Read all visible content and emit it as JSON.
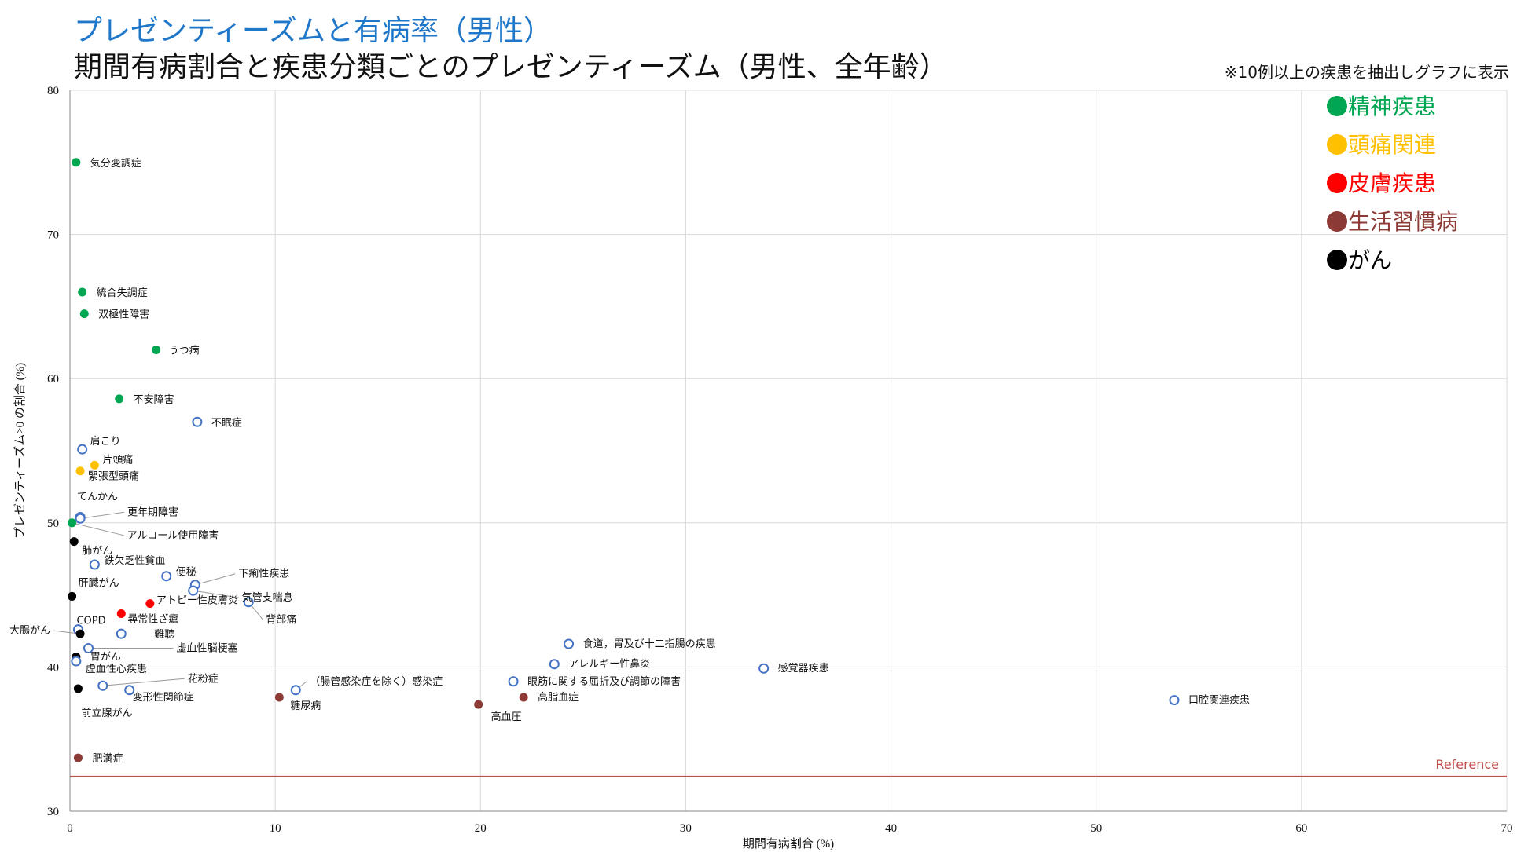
{
  "title": "プレゼンティーズムと有病率（男性）",
  "subtitle": "期間有病割合と疾患分類ごとのプレゼンティーズム（男性、全年齢）",
  "note": "※10例以上の疾患を抽出しグラフに表示",
  "colors": {
    "mental": "#00a651",
    "headache": "#ffc000",
    "skin": "#ff0000",
    "lifestyle": "#8b3a35",
    "cancer": "#000000",
    "other": "#4472c4",
    "reference": "#c0504d"
  },
  "chart_data": {
    "type": "scatter",
    "xlabel": "期間有病割合 (%)",
    "ylabel": "プレゼンティーズム>0 の割合 (%)",
    "xlim": [
      0,
      70
    ],
    "ylim": [
      30,
      80
    ],
    "x_ticks": [
      "0",
      "10",
      "20",
      "30",
      "40",
      "50",
      "60",
      "70"
    ],
    "y_ticks": [
      "30",
      "40",
      "50",
      "60",
      "70",
      "80"
    ],
    "grid": true,
    "legend_position": "top-right",
    "legend": [
      {
        "marker": "●",
        "label": "精神疾患",
        "group": "mental"
      },
      {
        "marker": "●",
        "label": "頭痛関連",
        "group": "headache"
      },
      {
        "marker": "●",
        "label": "皮膚疾患",
        "group": "skin"
      },
      {
        "marker": "●",
        "label": "生活習慣病",
        "group": "lifestyle"
      },
      {
        "marker": "●",
        "label": "がん",
        "group": "cancer"
      }
    ],
    "reference_line": {
      "y": 32.4,
      "label": "Reference"
    },
    "points": [
      {
        "name": "気分変調症",
        "x": 0.3,
        "y": 75.0,
        "group": "mental"
      },
      {
        "name": "統合失調症",
        "x": 0.6,
        "y": 66.0,
        "group": "mental"
      },
      {
        "name": "双極性障害",
        "x": 0.7,
        "y": 64.5,
        "group": "mental"
      },
      {
        "name": "うつ病",
        "x": 4.2,
        "y": 62.0,
        "group": "mental"
      },
      {
        "name": "不安障害",
        "x": 2.4,
        "y": 58.6,
        "group": "mental"
      },
      {
        "name": "不眠症",
        "x": 6.2,
        "y": 57.0,
        "group": "other"
      },
      {
        "name": "肩こり",
        "x": 0.6,
        "y": 55.1,
        "group": "other"
      },
      {
        "name": "片頭痛",
        "x": 1.2,
        "y": 54.0,
        "group": "headache"
      },
      {
        "name": "緊張型頭痛",
        "x": 0.5,
        "y": 53.6,
        "group": "headache"
      },
      {
        "name": "てんかん",
        "x": 0.5,
        "y": 50.4,
        "group": "other"
      },
      {
        "name": "更年期障害",
        "x": 0.5,
        "y": 50.3,
        "group": "other"
      },
      {
        "name": "アルコール使用障害",
        "x": 0.1,
        "y": 50.0,
        "group": "mental"
      },
      {
        "name": "肺がん",
        "x": 0.2,
        "y": 48.7,
        "group": "cancer"
      },
      {
        "name": "鉄欠乏性貧血",
        "x": 1.2,
        "y": 47.1,
        "group": "other"
      },
      {
        "name": "便秘",
        "x": 4.7,
        "y": 46.3,
        "group": "other"
      },
      {
        "name": "下痢性疾患",
        "x": 6.1,
        "y": 45.7,
        "group": "other"
      },
      {
        "name": "気管支喘息",
        "x": 6.0,
        "y": 45.3,
        "group": "other"
      },
      {
        "name": "肝臓がん",
        "x": 0.1,
        "y": 44.9,
        "group": "cancer"
      },
      {
        "name": "アトピー性皮膚炎",
        "x": 3.9,
        "y": 44.4,
        "group": "skin"
      },
      {
        "name": "背部痛",
        "x": 8.7,
        "y": 44.5,
        "group": "other"
      },
      {
        "name": "尋常性ざ瘡",
        "x": 2.5,
        "y": 43.7,
        "group": "skin"
      },
      {
        "name": "COPD",
        "x": 0.4,
        "y": 42.6,
        "group": "other"
      },
      {
        "name": "大腸がん",
        "x": 0.5,
        "y": 42.3,
        "group": "cancer"
      },
      {
        "name": "難聴",
        "x": 2.5,
        "y": 42.3,
        "group": "other"
      },
      {
        "name": "虚血性脳梗塞",
        "x": 0.9,
        "y": 41.3,
        "group": "other"
      },
      {
        "name": "食道，胃及び十二指腸の疾患",
        "x": 24.3,
        "y": 41.6,
        "group": "other"
      },
      {
        "name": "胃がん",
        "x": 0.3,
        "y": 40.7,
        "group": "cancer"
      },
      {
        "name": "アレルギー性鼻炎",
        "x": 23.6,
        "y": 40.2,
        "group": "other"
      },
      {
        "name": "虚血性心疾患",
        "x": 0.3,
        "y": 40.4,
        "group": "other"
      },
      {
        "name": "感覚器疾患",
        "x": 33.8,
        "y": 39.9,
        "group": "other"
      },
      {
        "name": "花粉症",
        "x": 1.6,
        "y": 38.7,
        "group": "other"
      },
      {
        "name": "眼筋に関する屈折及び調節の障害",
        "x": 21.6,
        "y": 39.0,
        "group": "other"
      },
      {
        "name": "（腸管感染症を除く）感染症",
        "x": 11.0,
        "y": 38.4,
        "group": "other"
      },
      {
        "name": "変形性関節症",
        "x": 2.9,
        "y": 38.4,
        "group": "other"
      },
      {
        "name": "前立腺がん",
        "x": 0.4,
        "y": 38.5,
        "group": "cancer"
      },
      {
        "name": "糖尿病",
        "x": 10.2,
        "y": 37.9,
        "group": "lifestyle"
      },
      {
        "name": "高脂血症",
        "x": 22.1,
        "y": 37.9,
        "group": "lifestyle"
      },
      {
        "name": "高血圧",
        "x": 19.9,
        "y": 37.4,
        "group": "lifestyle"
      },
      {
        "name": "口腔関連疾患",
        "x": 53.8,
        "y": 37.7,
        "group": "other"
      },
      {
        "name": "肥満症",
        "x": 0.4,
        "y": 33.7,
        "group": "lifestyle"
      }
    ]
  }
}
